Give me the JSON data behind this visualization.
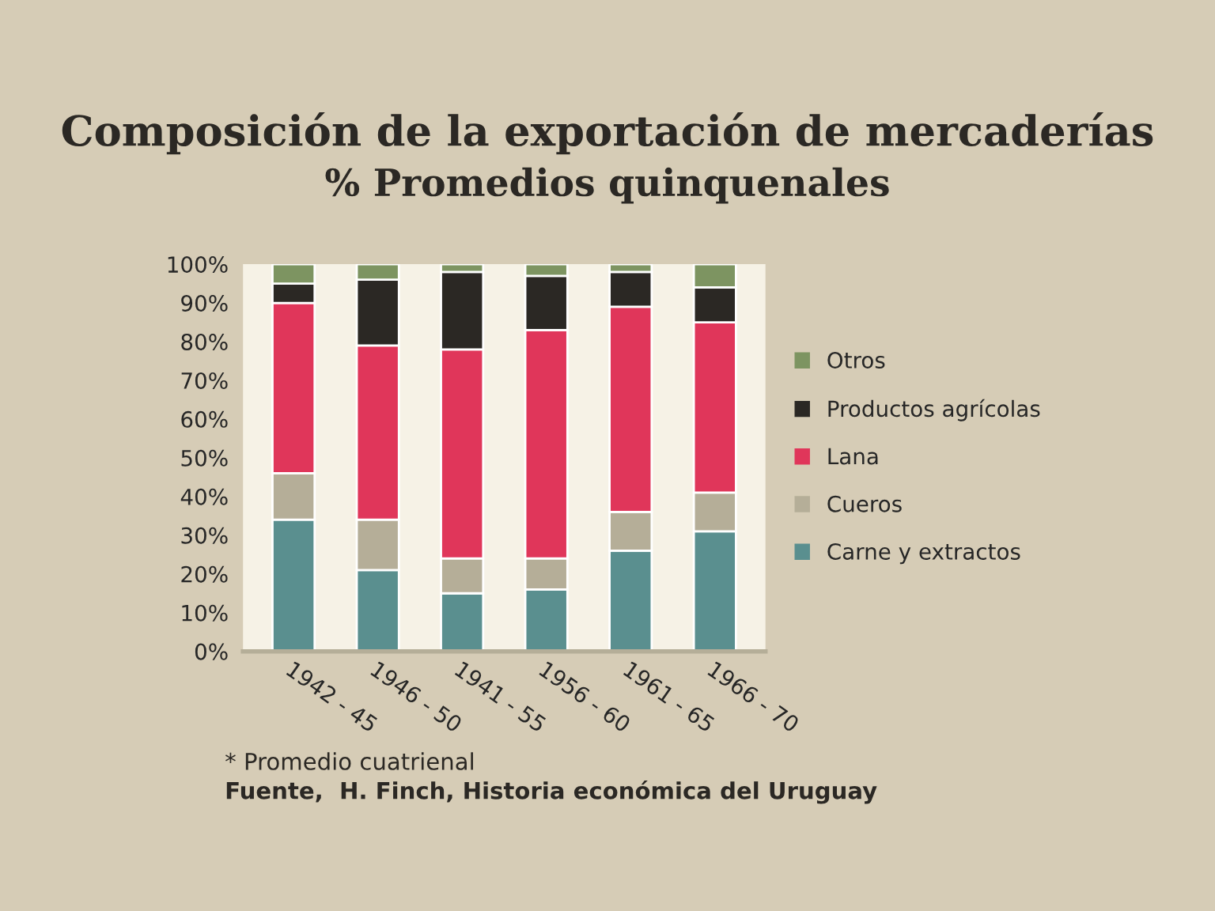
{
  "chart_data": {
    "type": "bar",
    "stacked": true,
    "title": "Composición de la exportación de mercaderías",
    "subtitle": "% Promedios quinquenales",
    "categories": [
      "1942 - 45",
      "1946 - 50",
      "1941 - 55",
      "1956 - 60",
      "1961 - 65",
      "1966 - 70"
    ],
    "series": [
      {
        "name": "Carne y extractos",
        "color": "#5a8f8f",
        "values": [
          34,
          21,
          15,
          16,
          26,
          31
        ]
      },
      {
        "name": "Cueros",
        "color": "#b5ae98",
        "values": [
          12,
          13,
          9,
          8,
          10,
          10
        ]
      },
      {
        "name": "Lana",
        "color": "#e0365a",
        "values": [
          44,
          45,
          54,
          59,
          53,
          44
        ]
      },
      {
        "name": "Productos agrícolas",
        "color": "#2b2824",
        "values": [
          5,
          17,
          20,
          14,
          9,
          9
        ]
      },
      {
        "name": "Otros",
        "color": "#7d9461",
        "values": [
          5,
          4,
          2,
          3,
          2,
          6
        ]
      }
    ],
    "ylim": [
      0,
      100
    ],
    "yticks": [
      {
        "value": 0,
        "label": "0%"
      },
      {
        "value": 10,
        "label": "10%"
      },
      {
        "value": 20,
        "label": "20%"
      },
      {
        "value": 30,
        "label": "30%"
      },
      {
        "value": 40,
        "label": "40%"
      },
      {
        "value": 50,
        "label": "50%"
      },
      {
        "value": 60,
        "label": "60%"
      },
      {
        "value": 70,
        "label": "70%"
      },
      {
        "value": 80,
        "label": "80%"
      },
      {
        "value": 90,
        "label": "90%"
      },
      {
        "value": 100,
        "label": "100%"
      }
    ],
    "grid": false,
    "legend": "right",
    "annotations": [
      "* Promedio cuatrienal",
      "Fuente,  H. Finch, Historia económica del Uruguay"
    ]
  }
}
